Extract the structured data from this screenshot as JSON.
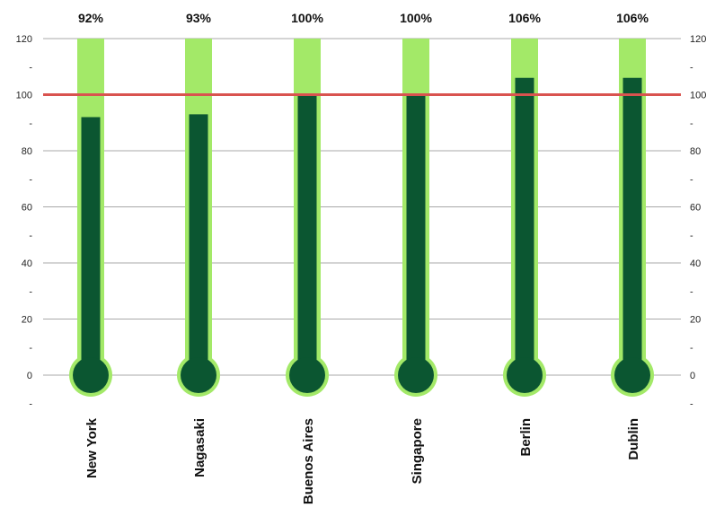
{
  "chart_data": {
    "type": "bar",
    "subtype": "thermometer",
    "categories": [
      "New York",
      "Nagasaki",
      "Buenos Aires",
      "Singapore",
      "Berlin",
      "Dublin"
    ],
    "values": [
      92,
      93,
      100,
      100,
      106,
      106
    ],
    "value_labels": [
      "92%",
      "93%",
      "100%",
      "100%",
      "106%",
      "106%"
    ],
    "capacity": 120,
    "target": 100,
    "ylim": [
      -10,
      120
    ],
    "yticks": [
      0,
      20,
      40,
      60,
      80,
      100,
      120
    ],
    "ytick_labels": [
      "0",
      "20",
      "40",
      "60",
      "80",
      "100",
      "120"
    ],
    "minor_ticks": [
      -10,
      10,
      30,
      50,
      70,
      90,
      110
    ],
    "minor_tick_label": "-",
    "grid": true,
    "dual_y_axis": true,
    "title": "",
    "xlabel": "",
    "ylabel": ""
  },
  "colors": {
    "tube": "#a3e968",
    "fill": "#0b5631",
    "target_line": "#d9534f",
    "grid": "#a9a9a9"
  }
}
